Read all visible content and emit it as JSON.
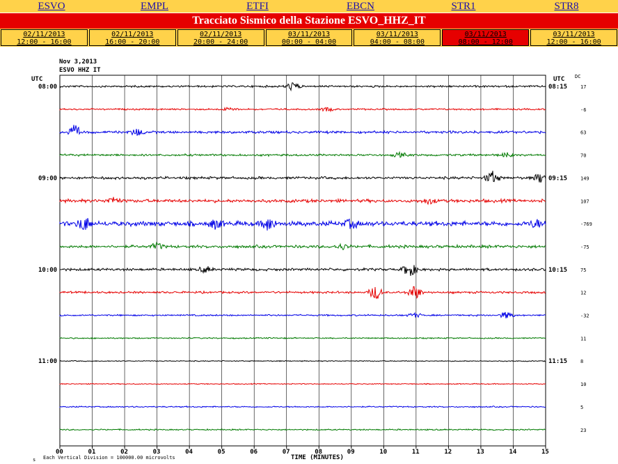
{
  "nav": {
    "stations": [
      {
        "label": "ESVO",
        "active": true
      },
      {
        "label": "EMPL",
        "active": false
      },
      {
        "label": "ETFI",
        "active": false
      },
      {
        "label": "EBCN",
        "active": false
      },
      {
        "label": "STR1",
        "active": false
      },
      {
        "label": "STR8",
        "active": false
      }
    ]
  },
  "title": "Tracciato Sismico della Stazione ESVO_HHZ_IT",
  "time_ranges": [
    {
      "date": "02/11/2013",
      "range": "12:00 - 16:00",
      "active": false
    },
    {
      "date": "02/11/2013",
      "range": "16:00 - 20:00",
      "active": false
    },
    {
      "date": "02/11/2013",
      "range": "20:00 - 24:00",
      "active": false
    },
    {
      "date": "03/11/2013",
      "range": "00:00 - 04:00",
      "active": false
    },
    {
      "date": "03/11/2013",
      "range": "04:00 - 08:00",
      "active": false
    },
    {
      "date": "03/11/2013",
      "range": "08:00 - 12:00",
      "active": true
    },
    {
      "date": "03/11/2013",
      "range": "12:00 - 16:00",
      "active": false
    }
  ],
  "seismogram": {
    "date_label": "Nov 3,2013",
    "station_label": "ESVO HHZ IT",
    "utc_left": "UTC",
    "utc_right": "UTC",
    "dc_label": "DC",
    "left_times": [
      "08:00",
      "09:00",
      "10:00",
      "11:00"
    ],
    "right_times": [
      "08:15",
      "09:15",
      "10:15",
      "11:15"
    ],
    "dc_values": [
      "17",
      "-6",
      "63",
      "70",
      "149",
      "107",
      "-769",
      "-75",
      "75",
      "12",
      "-32",
      "11",
      "8",
      "10",
      "5",
      "23"
    ],
    "trace_colors": [
      "#000000",
      "#e60000",
      "#0000e6",
      "#007a00"
    ],
    "x_ticks": [
      "00",
      "01",
      "02",
      "03",
      "04",
      "05",
      "06",
      "07",
      "08",
      "09",
      "10",
      "11",
      "12",
      "13",
      "14",
      "15"
    ],
    "x_label": "TIME (MINUTES)",
    "footnote": "Each Vertical Division = 100000.00 microvolts",
    "footnote_mark": "s"
  }
}
